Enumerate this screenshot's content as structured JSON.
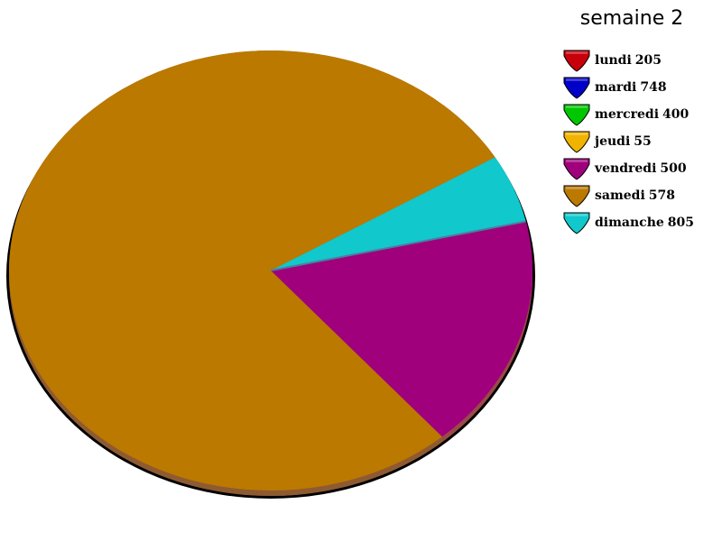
{
  "chart_data": {
    "type": "pie",
    "title": "semaine 2",
    "legend_position": "right",
    "slices": [
      {
        "label": "lundi",
        "value": 205,
        "color": "#c8000a"
      },
      {
        "label": "mardi",
        "value": 748,
        "color": "#0000c8"
      },
      {
        "label": "mercredi",
        "value": 400,
        "color": "#00c800"
      },
      {
        "label": "jeudi",
        "value": 55,
        "color": "#f0b400"
      },
      {
        "label": "vendredi",
        "value": 500,
        "color": "#a0007c"
      },
      {
        "label": "samedi",
        "value": 578,
        "color": "#bb7900"
      },
      {
        "label": "dimanche",
        "value": 805,
        "color": "#11c8cc"
      }
    ],
    "visible_arc_sequence": [
      {
        "label": "dimanche",
        "visible_fraction": 0.0503,
        "color": "#11c8cc"
      },
      {
        "label": "vendredi",
        "visible_fraction": 0.1722,
        "color": "#a0007c"
      },
      {
        "label": "samedi",
        "visible_fraction": 0.7775,
        "color": "#bb7900"
      }
    ]
  }
}
